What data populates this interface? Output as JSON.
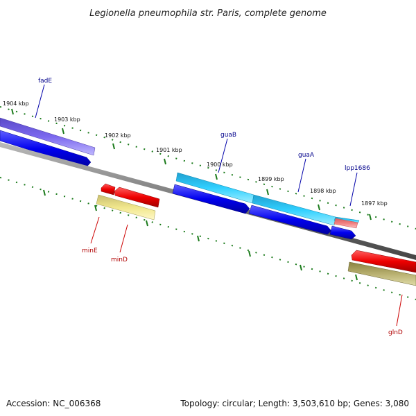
{
  "title": "Legionella pneumophila str. Paris, complete genome",
  "footer": {
    "accession": "Accession: NC_006368",
    "summary": "Topology: circular; Length: 3,503,610 bp; Genes: 3,080"
  },
  "tick_labels": [
    "1904 kbp",
    "1903 kbp",
    "1902 kbp",
    "1901 kbp",
    "1900 kbp",
    "1899 kbp",
    "1898 kbp",
    "1897 kbp"
  ],
  "genes": {
    "fadE": "fadE",
    "guaB": "guaB",
    "guaA": "guaA",
    "lpp1686": "lpp1686",
    "minE": "minE",
    "minD": "minD",
    "glnD": "glnD"
  },
  "colors": {
    "backbone": "#808080",
    "forward_cds": "#0000ee",
    "reverse_cds": "#ee0000",
    "fadE_feature": "#7b68ee",
    "gua_feature": "#1ec8f5",
    "lpp_feature": "#f08080",
    "min_feature": "#f0e68c",
    "gln_feature": "#b8b070",
    "ticks": "#1a7a1a"
  }
}
